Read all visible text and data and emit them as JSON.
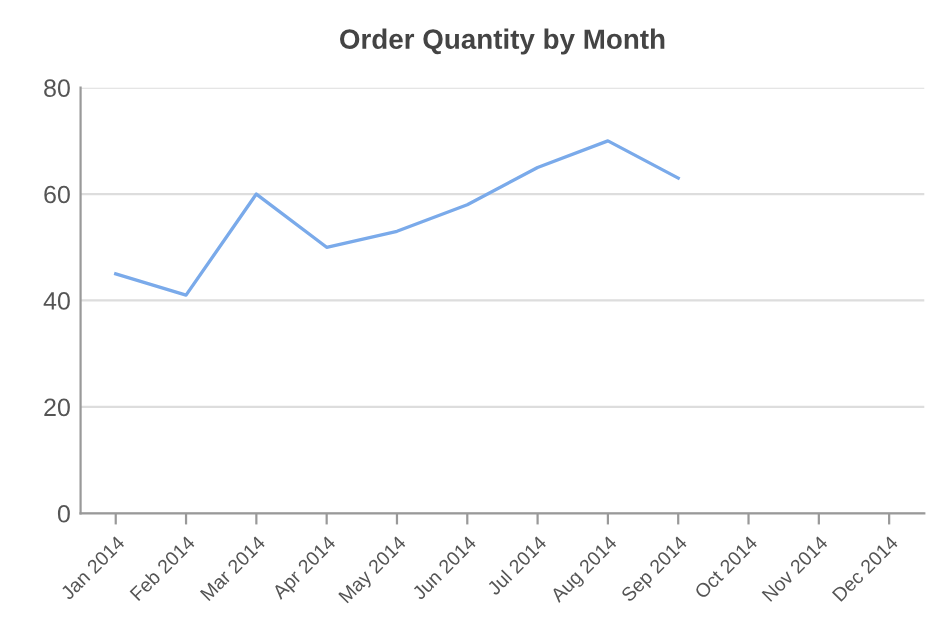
{
  "chart_data": {
    "type": "line",
    "title": "Order Quantity by Month",
    "categories": [
      "Jan 2014",
      "Feb 2014",
      "Mar 2014",
      "Apr 2014",
      "May 2014",
      "Jun 2014",
      "Jul 2014",
      "Aug 2014",
      "Sep 2014",
      "Oct 2014",
      "Nov 2014",
      "Dec 2014"
    ],
    "series": [
      {
        "color": "#7aaaea",
        "values": [
          45,
          41,
          60,
          50,
          53,
          58,
          65,
          70,
          63,
          null,
          null,
          null
        ]
      }
    ],
    "ylim": [
      0,
      80
    ],
    "yticks": [
      0,
      20,
      40,
      60,
      80
    ],
    "grid": "y",
    "legend": false,
    "marker": "none",
    "line_style": "solid"
  }
}
